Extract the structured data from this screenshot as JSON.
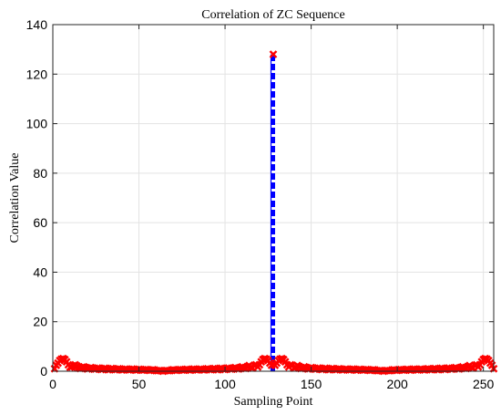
{
  "chart_data": {
    "type": "scatter",
    "title": "Correlation of ZC Sequence",
    "xlabel": "Sampling Point",
    "ylabel": "Correlation Value",
    "xlim": [
      0,
      256
    ],
    "ylim": [
      0,
      140
    ],
    "xticks": [
      0,
      50,
      100,
      150,
      200,
      250
    ],
    "yticks": [
      0,
      20,
      40,
      60,
      80,
      100,
      120,
      140
    ],
    "grid": true,
    "marker_color": "#ff0000",
    "line_color": "#0000ff",
    "peak": {
      "x": 128,
      "y": 128
    },
    "series": [
      {
        "points": [
          [
            1,
            1.0
          ],
          [
            2,
            2.4
          ],
          [
            3,
            3.3
          ],
          [
            4,
            4.3
          ],
          [
            5,
            4.9
          ],
          [
            6,
            5.1
          ],
          [
            7,
            4.7
          ],
          [
            8,
            3.8
          ],
          [
            9,
            2.6
          ],
          [
            10,
            1.6
          ],
          [
            11,
            1.7
          ],
          [
            12,
            2.3
          ],
          [
            13,
            2.6
          ],
          [
            14,
            2.1
          ],
          [
            15,
            1.3
          ],
          [
            16,
            1.1
          ],
          [
            17,
            1.6
          ],
          [
            18,
            1.8
          ],
          [
            19,
            1.4
          ],
          [
            20,
            0.9
          ],
          [
            21,
            1.1
          ],
          [
            22,
            1.5
          ],
          [
            23,
            1.3
          ],
          [
            24,
            0.8
          ],
          [
            25,
            0.9
          ],
          [
            26,
            1.3
          ],
          [
            27,
            1.2
          ],
          [
            28,
            0.7
          ],
          [
            29,
            0.8
          ],
          [
            30,
            1.2
          ],
          [
            31,
            1.1
          ],
          [
            32,
            0.6
          ],
          [
            33,
            0.7
          ],
          [
            34,
            1.1
          ],
          [
            35,
            1.0
          ],
          [
            36,
            0.6
          ],
          [
            37,
            0.7
          ],
          [
            38,
            1.0
          ],
          [
            39,
            0.9
          ],
          [
            40,
            0.5
          ],
          [
            41,
            0.6
          ],
          [
            42,
            0.9
          ],
          [
            43,
            0.8
          ],
          [
            44,
            0.5
          ],
          [
            45,
            0.6
          ],
          [
            46,
            0.9
          ],
          [
            47,
            0.8
          ],
          [
            48,
            0.4
          ],
          [
            49,
            0.5
          ],
          [
            50,
            0.8
          ],
          [
            51,
            0.7
          ],
          [
            52,
            0.4
          ],
          [
            53,
            0.5
          ],
          [
            54,
            0.7
          ],
          [
            55,
            0.6
          ],
          [
            56,
            0.3
          ],
          [
            57,
            0.4
          ],
          [
            58,
            0.6
          ],
          [
            59,
            0.5
          ],
          [
            60,
            0.2
          ],
          [
            61,
            0.2
          ],
          [
            62,
            0.3
          ],
          [
            63,
            0.2
          ],
          [
            64,
            0.0
          ],
          [
            65,
            0.2
          ],
          [
            66,
            0.3
          ],
          [
            67,
            0.2
          ],
          [
            68,
            0.2
          ],
          [
            69,
            0.5
          ],
          [
            70,
            0.6
          ],
          [
            71,
            0.4
          ],
          [
            72,
            0.3
          ],
          [
            73,
            0.6
          ],
          [
            74,
            0.7
          ],
          [
            75,
            0.5
          ],
          [
            76,
            0.4
          ],
          [
            77,
            0.7
          ],
          [
            78,
            0.8
          ],
          [
            79,
            0.5
          ],
          [
            80,
            0.4
          ],
          [
            81,
            0.8
          ],
          [
            82,
            0.9
          ],
          [
            83,
            0.6
          ],
          [
            84,
            0.5
          ],
          [
            85,
            0.8
          ],
          [
            86,
            0.9
          ],
          [
            87,
            0.6
          ],
          [
            88,
            0.5
          ],
          [
            89,
            0.9
          ],
          [
            90,
            1.0
          ],
          [
            91,
            0.7
          ],
          [
            92,
            0.6
          ],
          [
            93,
            1.0
          ],
          [
            94,
            1.1
          ],
          [
            95,
            0.7
          ],
          [
            96,
            0.6
          ],
          [
            97,
            1.1
          ],
          [
            98,
            1.2
          ],
          [
            99,
            0.8
          ],
          [
            100,
            0.7
          ],
          [
            101,
            1.2
          ],
          [
            102,
            1.3
          ],
          [
            103,
            0.9
          ],
          [
            104,
            0.8
          ],
          [
            105,
            1.3
          ],
          [
            106,
            1.5
          ],
          [
            107,
            1.0
          ],
          [
            108,
            0.9
          ],
          [
            109,
            1.5
          ],
          [
            110,
            1.8
          ],
          [
            111,
            1.3
          ],
          [
            112,
            1.1
          ],
          [
            113,
            1.9
          ],
          [
            114,
            2.3
          ],
          [
            115,
            1.6
          ],
          [
            116,
            1.3
          ],
          [
            117,
            2.4
          ],
          [
            118,
            2.6
          ],
          [
            119,
            1.7
          ],
          [
            120,
            2.6
          ],
          [
            121,
            3.8
          ],
          [
            122,
            4.7
          ],
          [
            123,
            5.1
          ],
          [
            124,
            4.9
          ],
          [
            125,
            4.3
          ],
          [
            126,
            3.3
          ],
          [
            127,
            2.4
          ],
          [
            128,
            128.0
          ],
          [
            129,
            2.4
          ],
          [
            130,
            3.3
          ],
          [
            131,
            4.3
          ],
          [
            132,
            4.9
          ],
          [
            133,
            5.1
          ],
          [
            134,
            4.7
          ],
          [
            135,
            3.8
          ],
          [
            136,
            2.6
          ],
          [
            137,
            1.7
          ],
          [
            138,
            2.6
          ],
          [
            139,
            2.4
          ],
          [
            140,
            1.3
          ],
          [
            141,
            1.6
          ],
          [
            142,
            2.3
          ],
          [
            143,
            1.9
          ],
          [
            144,
            1.1
          ],
          [
            145,
            1.3
          ],
          [
            146,
            1.8
          ],
          [
            147,
            1.5
          ],
          [
            148,
            0.9
          ],
          [
            149,
            1.0
          ],
          [
            150,
            1.5
          ],
          [
            151,
            1.3
          ],
          [
            152,
            0.8
          ],
          [
            153,
            0.9
          ],
          [
            154,
            1.3
          ],
          [
            155,
            1.2
          ],
          [
            156,
            0.7
          ],
          [
            157,
            0.8
          ],
          [
            158,
            1.2
          ],
          [
            159,
            1.1
          ],
          [
            160,
            0.6
          ],
          [
            161,
            0.7
          ],
          [
            162,
            1.1
          ],
          [
            163,
            1.0
          ],
          [
            164,
            0.6
          ],
          [
            165,
            0.7
          ],
          [
            166,
            1.0
          ],
          [
            167,
            0.9
          ],
          [
            168,
            0.5
          ],
          [
            169,
            0.6
          ],
          [
            170,
            0.9
          ],
          [
            171,
            0.8
          ],
          [
            172,
            0.5
          ],
          [
            173,
            0.6
          ],
          [
            174,
            0.9
          ],
          [
            175,
            0.8
          ],
          [
            176,
            0.4
          ],
          [
            177,
            0.5
          ],
          [
            178,
            0.8
          ],
          [
            179,
            0.7
          ],
          [
            180,
            0.4
          ],
          [
            181,
            0.5
          ],
          [
            182,
            0.7
          ],
          [
            183,
            0.6
          ],
          [
            184,
            0.3
          ],
          [
            185,
            0.4
          ],
          [
            186,
            0.6
          ],
          [
            187,
            0.5
          ],
          [
            188,
            0.2
          ],
          [
            189,
            0.2
          ],
          [
            190,
            0.3
          ],
          [
            191,
            0.2
          ],
          [
            192,
            0.0
          ],
          [
            193,
            0.2
          ],
          [
            194,
            0.3
          ],
          [
            195,
            0.2
          ],
          [
            196,
            0.2
          ],
          [
            197,
            0.5
          ],
          [
            198,
            0.6
          ],
          [
            199,
            0.4
          ],
          [
            200,
            0.3
          ],
          [
            201,
            0.6
          ],
          [
            202,
            0.7
          ],
          [
            203,
            0.5
          ],
          [
            204,
            0.4
          ],
          [
            205,
            0.7
          ],
          [
            206,
            0.8
          ],
          [
            207,
            0.5
          ],
          [
            208,
            0.4
          ],
          [
            209,
            0.8
          ],
          [
            210,
            0.9
          ],
          [
            211,
            0.6
          ],
          [
            212,
            0.5
          ],
          [
            213,
            0.8
          ],
          [
            214,
            0.9
          ],
          [
            215,
            0.6
          ],
          [
            216,
            0.5
          ],
          [
            217,
            0.9
          ],
          [
            218,
            1.0
          ],
          [
            219,
            0.7
          ],
          [
            220,
            0.6
          ],
          [
            221,
            1.0
          ],
          [
            222,
            1.1
          ],
          [
            223,
            0.7
          ],
          [
            224,
            0.6
          ],
          [
            225,
            1.1
          ],
          [
            226,
            1.2
          ],
          [
            227,
            0.8
          ],
          [
            228,
            0.7
          ],
          [
            229,
            1.2
          ],
          [
            230,
            1.3
          ],
          [
            231,
            0.9
          ],
          [
            232,
            0.8
          ],
          [
            233,
            1.3
          ],
          [
            234,
            1.5
          ],
          [
            235,
            1.0
          ],
          [
            236,
            0.9
          ],
          [
            237,
            1.5
          ],
          [
            238,
            1.8
          ],
          [
            239,
            1.3
          ],
          [
            240,
            1.1
          ],
          [
            241,
            1.9
          ],
          [
            242,
            2.3
          ],
          [
            243,
            1.6
          ],
          [
            244,
            1.3
          ],
          [
            245,
            2.4
          ],
          [
            246,
            2.6
          ],
          [
            247,
            1.7
          ],
          [
            248,
            2.6
          ],
          [
            249,
            3.8
          ],
          [
            250,
            4.7
          ],
          [
            251,
            5.1
          ],
          [
            252,
            4.9
          ],
          [
            253,
            4.3
          ],
          [
            254,
            3.3
          ],
          [
            255,
            2.4
          ],
          [
            256,
            1.0
          ]
        ]
      }
    ]
  }
}
